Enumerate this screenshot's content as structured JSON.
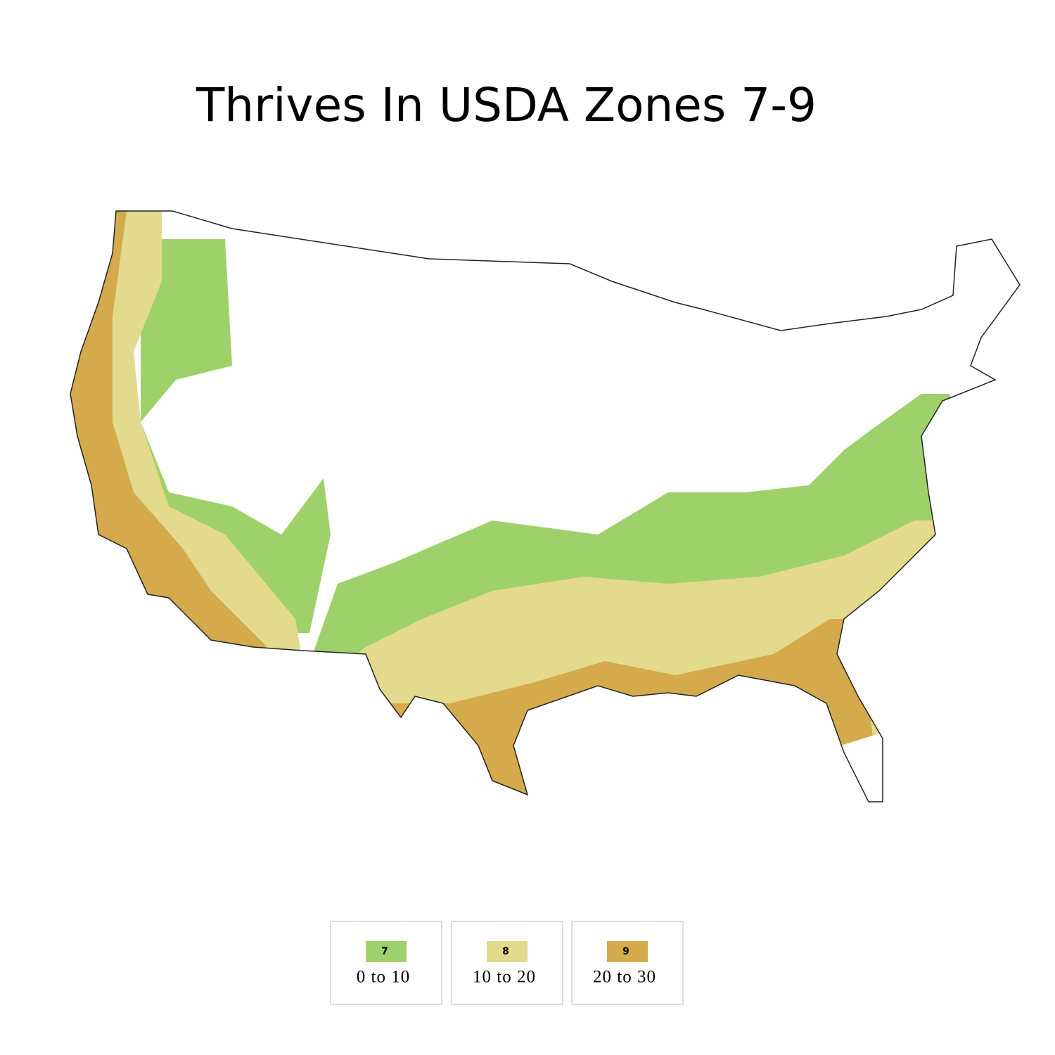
{
  "title": "Thrives In USDA Zones 7-9",
  "legend": [
    {
      "zone": "7",
      "range": "0 to 10",
      "color": "#9fd16a"
    },
    {
      "zone": "8",
      "range": "10 to 20",
      "color": "#e3da8e"
    },
    {
      "zone": "9",
      "range": "20 to 30",
      "color": "#d4aa4c"
    }
  ]
}
